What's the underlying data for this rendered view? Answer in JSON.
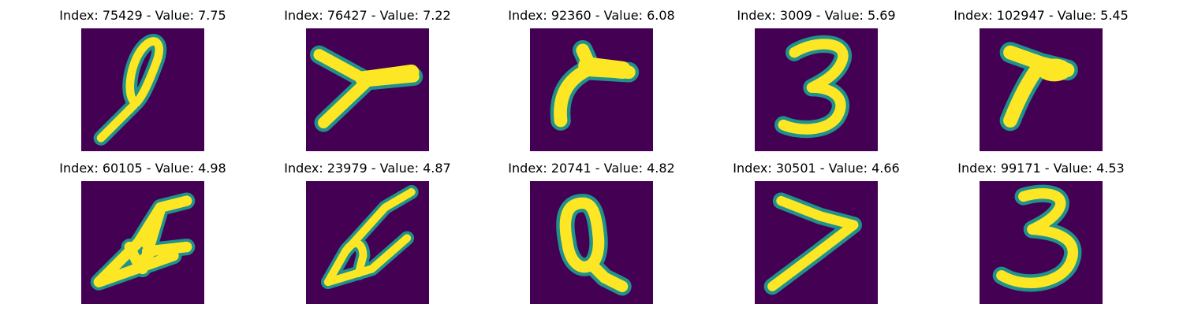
{
  "panels": [
    {
      "title": "Index: 75429 - Value: 7.75",
      "image": "digit-loop-tail"
    },
    {
      "title": "Index: 76427 - Value: 7.22",
      "image": "digit-seven-wide"
    },
    {
      "title": "Index: 92360 - Value: 6.08",
      "image": "digit-seven-hook"
    },
    {
      "title": "Index: 3009 - Value: 5.69",
      "image": "digit-three"
    },
    {
      "title": "Index: 102947 - Value: 5.45",
      "image": "digit-seven-bold"
    },
    {
      "title": "Index: 60105 - Value: 4.98",
      "image": "digit-four-slanted"
    },
    {
      "title": "Index: 23979 - Value: 4.87",
      "image": "digit-four-loop"
    },
    {
      "title": "Index: 20741 - Value: 4.82",
      "image": "digit-zero-tail"
    },
    {
      "title": "Index: 30501 - Value: 4.66",
      "image": "digit-seven-angle"
    },
    {
      "title": "Index: 99171 - Value: 4.53",
      "image": "digit-three-wide"
    }
  ],
  "colors": {
    "background": "#440154",
    "stroke_edge": "#21918c",
    "stroke_core": "#fde725"
  }
}
